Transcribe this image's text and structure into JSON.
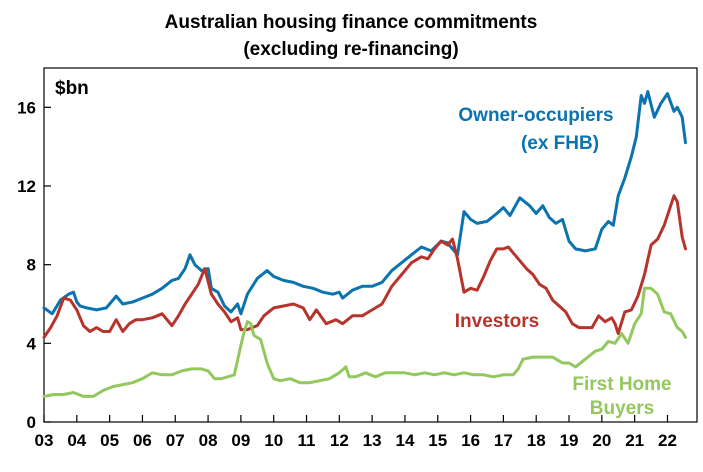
{
  "chart_data": {
    "type": "line",
    "title_lines": [
      "Australian housing finance commitments",
      "(excluding re-financing)"
    ],
    "unit_label": "$bn",
    "xlabel": "",
    "ylabel": "",
    "ylim": [
      0,
      18
    ],
    "xlim": [
      2003.0,
      2022.9
    ],
    "y_ticks": [
      {
        "value": 0,
        "label": "0"
      },
      {
        "value": 4,
        "label": "4"
      },
      {
        "value": 8,
        "label": "8"
      },
      {
        "value": 12,
        "label": "12"
      },
      {
        "value": 16,
        "label": "16"
      }
    ],
    "x_ticks": [
      {
        "value": 2003,
        "label": "03"
      },
      {
        "value": 2004,
        "label": "04"
      },
      {
        "value": 2005,
        "label": "05"
      },
      {
        "value": 2006,
        "label": "06"
      },
      {
        "value": 2007,
        "label": "07"
      },
      {
        "value": 2008,
        "label": "08"
      },
      {
        "value": 2009,
        "label": "09"
      },
      {
        "value": 2010,
        "label": "10"
      },
      {
        "value": 2011,
        "label": "11"
      },
      {
        "value": 2012,
        "label": "12"
      },
      {
        "value": 2013,
        "label": "13"
      },
      {
        "value": 2014,
        "label": "14"
      },
      {
        "value": 2015,
        "label": "15"
      },
      {
        "value": 2016,
        "label": "16"
      },
      {
        "value": 2017,
        "label": "17"
      },
      {
        "value": 2018,
        "label": "18"
      },
      {
        "value": 2019,
        "label": "19"
      },
      {
        "value": 2020,
        "label": "20"
      },
      {
        "value": 2021,
        "label": "21"
      },
      {
        "value": 2022,
        "label": "22"
      }
    ],
    "grid": false,
    "legend": "inline labels",
    "series": [
      {
        "name": "Owner-occupiers (ex FHB)",
        "label_lines": [
          "Owner-occupiers",
          "(ex FHB)"
        ],
        "color": "#0a73b0",
        "x": [
          2003.0,
          2003.25,
          2003.5,
          2003.75,
          2003.9,
          2004.0,
          2004.1,
          2004.3,
          2004.6,
          2004.9,
          2005.1,
          2005.2,
          2005.4,
          2005.7,
          2006.0,
          2006.3,
          2006.6,
          2006.9,
          2007.1,
          2007.3,
          2007.45,
          2007.6,
          2007.8,
          2008.0,
          2008.1,
          2008.3,
          2008.5,
          2008.7,
          2008.9,
          2009.0,
          2009.2,
          2009.5,
          2009.8,
          2010.0,
          2010.3,
          2010.6,
          2010.9,
          2011.2,
          2011.5,
          2011.8,
          2012.0,
          2012.1,
          2012.4,
          2012.7,
          2013.0,
          2013.3,
          2013.6,
          2013.9,
          2014.2,
          2014.5,
          2014.8,
          2015.1,
          2015.3,
          2015.45,
          2015.6,
          2015.8,
          2016.0,
          2016.2,
          2016.5,
          2016.8,
          2017.0,
          2017.2,
          2017.5,
          2017.8,
          2018.0,
          2018.2,
          2018.4,
          2018.6,
          2018.8,
          2019.0,
          2019.2,
          2019.5,
          2019.8,
          2020.0,
          2020.2,
          2020.35,
          2020.5,
          2020.7,
          2020.9,
          2021.05,
          2021.2,
          2021.3,
          2021.4,
          2021.6,
          2021.8,
          2022.0,
          2022.2,
          2022.3,
          2022.45,
          2022.55
        ],
        "values": [
          5.8,
          5.5,
          6.2,
          6.5,
          6.6,
          6.1,
          5.9,
          5.8,
          5.7,
          5.8,
          6.2,
          6.4,
          6.0,
          6.1,
          6.3,
          6.5,
          6.8,
          7.2,
          7.3,
          7.8,
          8.5,
          8.0,
          7.7,
          7.8,
          6.8,
          6.6,
          5.9,
          5.6,
          6.0,
          5.5,
          6.5,
          7.3,
          7.7,
          7.4,
          7.2,
          7.1,
          6.9,
          6.8,
          6.6,
          6.5,
          6.6,
          6.3,
          6.7,
          6.9,
          6.9,
          7.1,
          7.7,
          8.1,
          8.5,
          8.9,
          8.7,
          9.2,
          9.1,
          8.8,
          8.5,
          10.7,
          10.3,
          10.1,
          10.2,
          10.6,
          10.9,
          10.5,
          11.4,
          11.0,
          10.6,
          11.0,
          10.4,
          10.1,
          10.3,
          9.2,
          8.8,
          8.7,
          8.8,
          9.8,
          10.2,
          10.0,
          11.5,
          12.4,
          13.5,
          14.5,
          16.6,
          16.2,
          16.8,
          15.5,
          16.2,
          16.7,
          15.8,
          16.0,
          15.5,
          14.2
        ]
      },
      {
        "name": "Investors",
        "label_lines": [
          "Investors"
        ],
        "color": "#b6342c",
        "x": [
          2003.0,
          2003.2,
          2003.4,
          2003.6,
          2003.8,
          2004.0,
          2004.2,
          2004.4,
          2004.6,
          2004.8,
          2005.0,
          2005.2,
          2005.4,
          2005.6,
          2005.8,
          2006.0,
          2006.3,
          2006.6,
          2006.9,
          2007.1,
          2007.3,
          2007.5,
          2007.7,
          2007.9,
          2008.1,
          2008.3,
          2008.5,
          2008.7,
          2008.9,
          2009.0,
          2009.2,
          2009.5,
          2009.7,
          2010.0,
          2010.3,
          2010.6,
          2010.9,
          2011.1,
          2011.3,
          2011.6,
          2011.9,
          2012.1,
          2012.4,
          2012.7,
          2013.0,
          2013.3,
          2013.6,
          2013.9,
          2014.2,
          2014.5,
          2014.7,
          2014.9,
          2015.1,
          2015.3,
          2015.45,
          2015.6,
          2015.8,
          2016.0,
          2016.2,
          2016.4,
          2016.6,
          2016.8,
          2017.0,
          2017.15,
          2017.3,
          2017.5,
          2017.7,
          2017.9,
          2018.1,
          2018.3,
          2018.5,
          2018.7,
          2018.9,
          2019.1,
          2019.3,
          2019.5,
          2019.7,
          2019.9,
          2020.1,
          2020.3,
          2020.4,
          2020.5,
          2020.7,
          2020.9,
          2021.1,
          2021.3,
          2021.5,
          2021.7,
          2021.9,
          2022.1,
          2022.2,
          2022.3,
          2022.45,
          2022.55
        ],
        "values": [
          4.3,
          4.8,
          5.4,
          6.3,
          6.2,
          5.7,
          4.9,
          4.6,
          4.8,
          4.6,
          4.6,
          5.2,
          4.6,
          5.0,
          5.2,
          5.2,
          5.3,
          5.5,
          4.9,
          5.4,
          6.0,
          6.5,
          7.0,
          7.8,
          6.5,
          6.0,
          5.6,
          5.1,
          5.3,
          4.7,
          4.7,
          4.9,
          5.4,
          5.8,
          5.9,
          6.0,
          5.8,
          5.2,
          5.7,
          5.0,
          5.2,
          5.0,
          5.4,
          5.4,
          5.7,
          6.0,
          6.9,
          7.5,
          8.1,
          8.4,
          8.3,
          8.8,
          9.2,
          9.0,
          9.3,
          8.3,
          6.6,
          6.8,
          6.7,
          7.4,
          8.2,
          8.8,
          8.8,
          8.9,
          8.6,
          8.2,
          7.8,
          7.5,
          7.0,
          6.8,
          6.2,
          5.9,
          5.6,
          5.0,
          4.8,
          4.8,
          4.8,
          5.4,
          5.1,
          5.3,
          5.0,
          4.5,
          5.6,
          5.7,
          6.4,
          7.5,
          9.0,
          9.3,
          10.0,
          11.0,
          11.5,
          11.2,
          9.4,
          8.8
        ]
      },
      {
        "name": "First Home Buyers",
        "label_lines": [
          "First Home",
          "Buyers"
        ],
        "color": "#92c85d",
        "x": [
          2003.0,
          2003.3,
          2003.6,
          2003.9,
          2004.2,
          2004.5,
          2004.8,
          2005.1,
          2005.4,
          2005.7,
          2006.0,
          2006.3,
          2006.6,
          2006.9,
          2007.2,
          2007.5,
          2007.8,
          2008.0,
          2008.2,
          2008.4,
          2008.6,
          2008.8,
          2009.0,
          2009.1,
          2009.2,
          2009.3,
          2009.4,
          2009.6,
          2009.8,
          2010.0,
          2010.2,
          2010.5,
          2010.8,
          2011.1,
          2011.4,
          2011.7,
          2012.0,
          2012.2,
          2012.3,
          2012.5,
          2012.8,
          2013.1,
          2013.4,
          2013.7,
          2014.0,
          2014.3,
          2014.6,
          2014.9,
          2015.2,
          2015.5,
          2015.8,
          2016.1,
          2016.4,
          2016.7,
          2017.0,
          2017.3,
          2017.45,
          2017.6,
          2017.9,
          2018.2,
          2018.5,
          2018.8,
          2019.0,
          2019.2,
          2019.5,
          2019.8,
          2020.0,
          2020.2,
          2020.4,
          2020.6,
          2020.8,
          2021.0,
          2021.2,
          2021.3,
          2021.5,
          2021.7,
          2021.9,
          2022.1,
          2022.3,
          2022.45,
          2022.55
        ],
        "values": [
          1.3,
          1.4,
          1.4,
          1.5,
          1.3,
          1.3,
          1.6,
          1.8,
          1.9,
          2.0,
          2.2,
          2.5,
          2.4,
          2.4,
          2.6,
          2.7,
          2.7,
          2.6,
          2.2,
          2.2,
          2.3,
          2.4,
          3.9,
          4.6,
          5.1,
          5.0,
          4.4,
          4.2,
          3.0,
          2.2,
          2.1,
          2.2,
          2.0,
          2.0,
          2.1,
          2.2,
          2.5,
          2.8,
          2.3,
          2.3,
          2.5,
          2.3,
          2.5,
          2.5,
          2.5,
          2.4,
          2.5,
          2.4,
          2.5,
          2.4,
          2.5,
          2.4,
          2.4,
          2.3,
          2.4,
          2.4,
          2.7,
          3.2,
          3.3,
          3.3,
          3.3,
          3.0,
          3.0,
          2.8,
          3.2,
          3.6,
          3.7,
          4.1,
          4.0,
          4.5,
          4.0,
          5.0,
          5.5,
          6.8,
          6.8,
          6.5,
          5.6,
          5.5,
          4.8,
          4.6,
          4.3
        ]
      }
    ]
  }
}
